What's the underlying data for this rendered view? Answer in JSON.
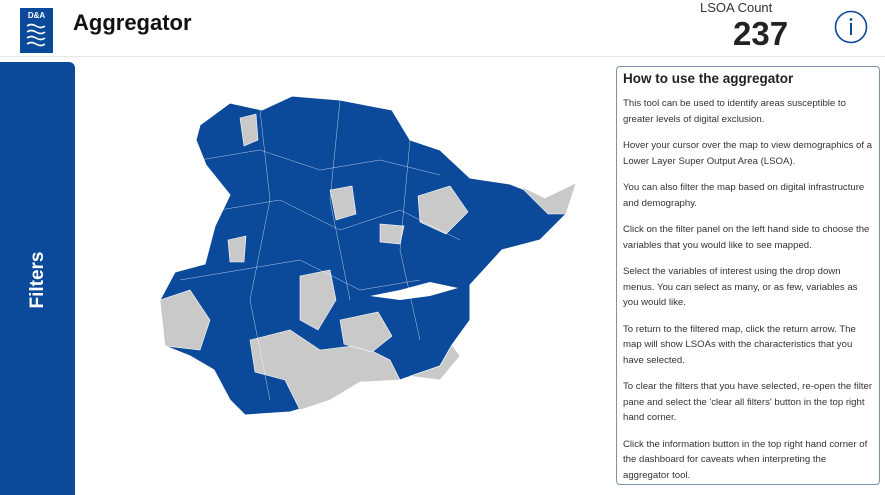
{
  "header": {
    "logo": "D&A",
    "title": "Aggregator",
    "metric": {
      "label": "LSOA Count",
      "value": 237
    }
  },
  "sidebar": {
    "label": "Filters"
  },
  "help": {
    "title": "How to use the aggregator",
    "paragraphs": [
      "This tool can be used to identify areas susceptible to greater levels of digital exclusion.",
      "Hover your cursor over the map to view demographics of a Lower Layer Super Output Area (LSOA).",
      "You can also filter the map based on digital infrastructure and demography.",
      "Click on the filter panel on the left hand side to choose the variables that you would like to see mapped.",
      "Select the variables of interest using the drop down menus. You can select as many, or as few, variables as you would like.",
      "To return to the filtered map, click the return arrow. The map will show LSOAs with the characteristics that you have selected.",
      "To clear the filters that you have selected, re-open the filter pane and select the 'clear all filters' button in the top right hand corner.",
      "Click the information button in the top right hand corner of the dashboard for caveats when interpreting the aggregator tool."
    ]
  }
}
